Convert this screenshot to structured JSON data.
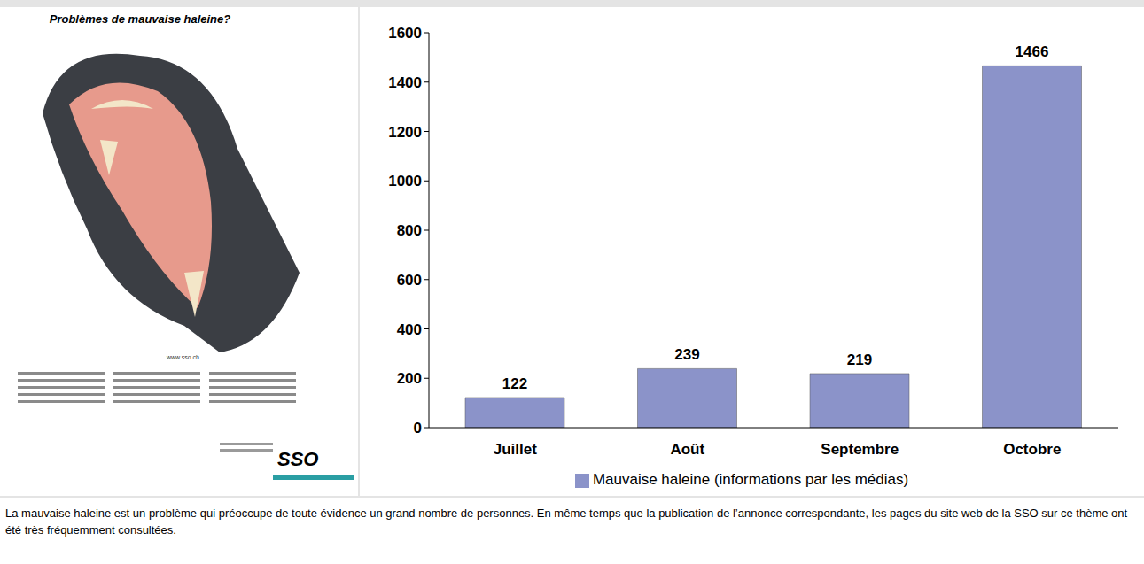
{
  "poster": {
    "title": "Problèmes de mauvaise haleine?",
    "url": "www.sso.ch",
    "logo": "SSO"
  },
  "caption": "La mauvaise haleine est un problème qui préoccupe de toute évidence un grand nombre de personnes. En même temps que la publication de l’annonce correspondante, les pages du site web de la SSO sur ce thème ont été très fréquemment consultées.",
  "chart_data": {
    "type": "bar",
    "categories": [
      "Juillet",
      "Août",
      "Septembre",
      "Octobre"
    ],
    "series": [
      {
        "name": "Mauvaise haleine (informations par les médias)",
        "color": "#8b93c9",
        "values": [
          122,
          239,
          219,
          1466
        ]
      }
    ],
    "ylim": [
      0,
      1600
    ],
    "yticks": [
      0,
      200,
      400,
      600,
      800,
      1000,
      1200,
      1400,
      1600
    ],
    "data_labels": true,
    "legend": "bottom"
  }
}
